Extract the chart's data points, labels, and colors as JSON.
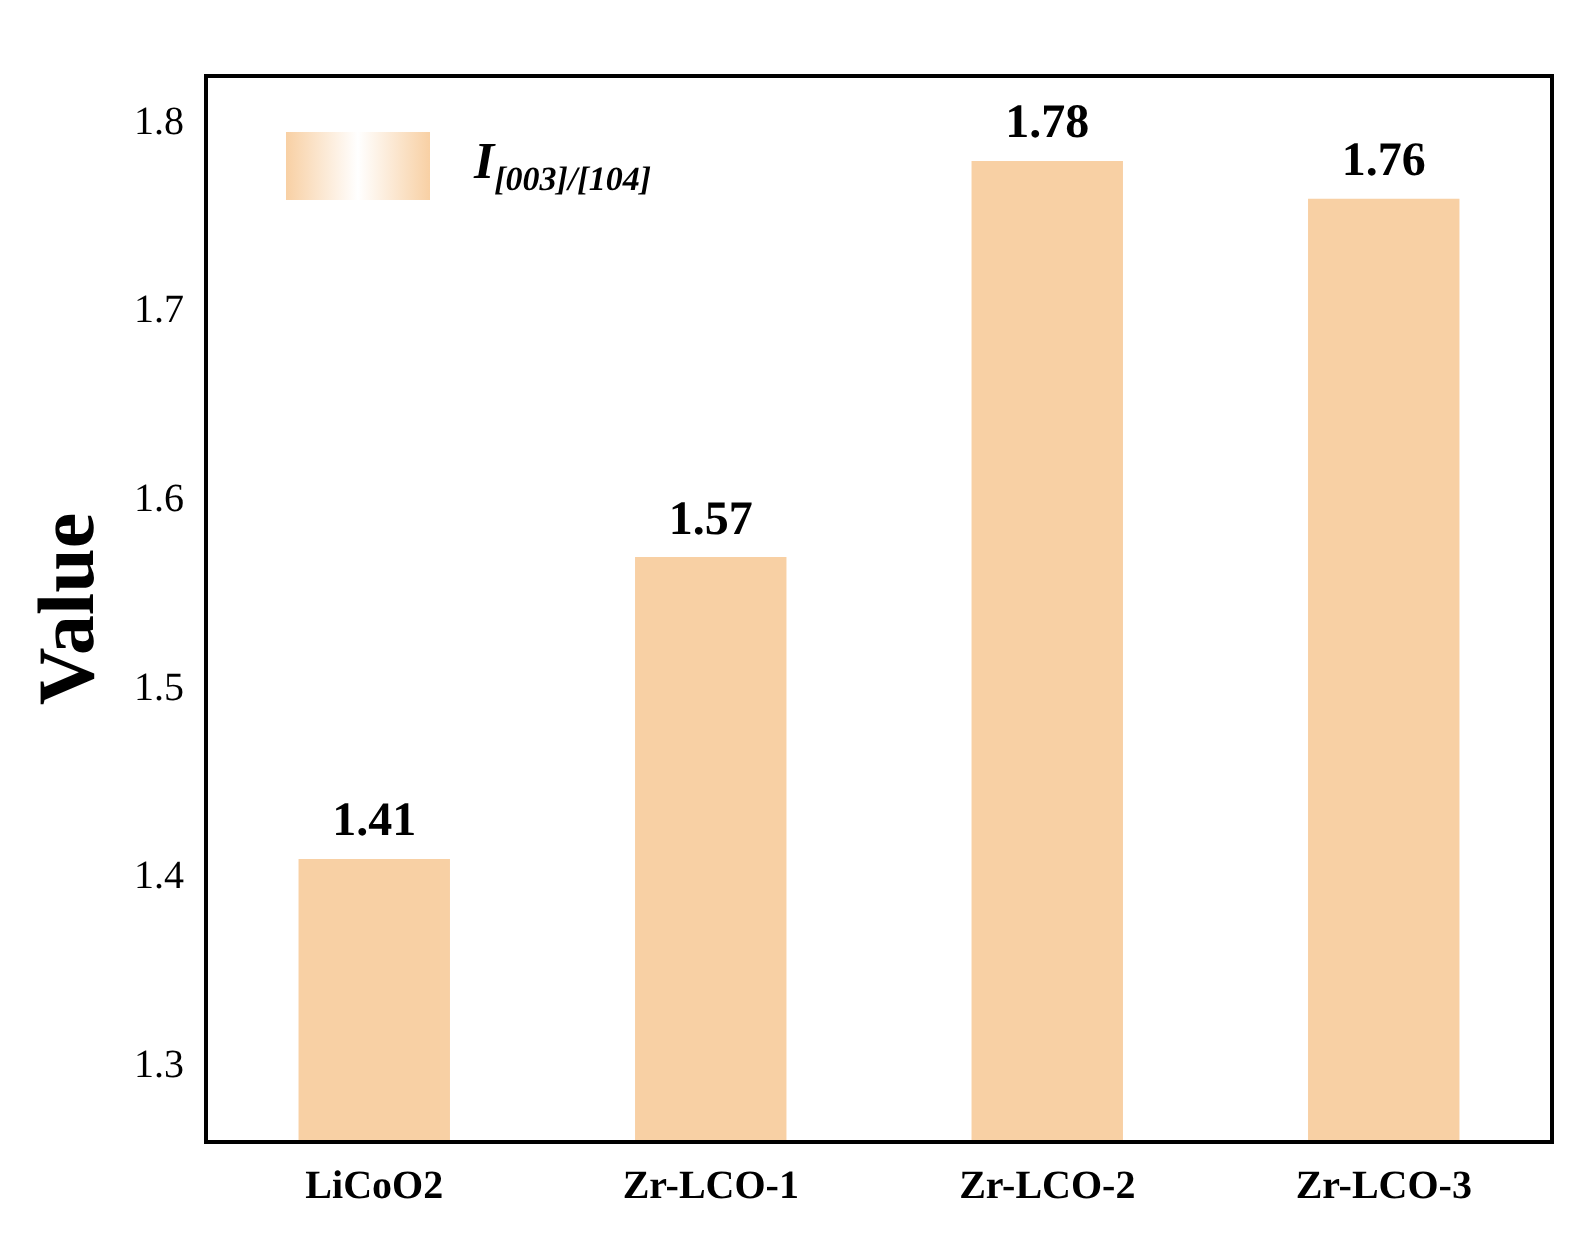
{
  "chart_data": {
    "type": "bar",
    "ylabel": "Value",
    "categories": [
      "LiCoO2",
      "Zr-LCO-1",
      "Zr-LCO-2",
      "Zr-LCO-3"
    ],
    "series": [
      {
        "name": "I$_{[003]/[104]}$",
        "color": "#f8d0a4",
        "values": [
          1.41,
          1.57,
          1.78,
          1.76
        ]
      }
    ],
    "ylim": [
      1.26,
      1.825
    ],
    "yticks": [
      1.3,
      1.4,
      1.5,
      1.6,
      1.7,
      1.8
    ],
    "data_labels": true,
    "legend": "top left",
    "grid": false
  }
}
